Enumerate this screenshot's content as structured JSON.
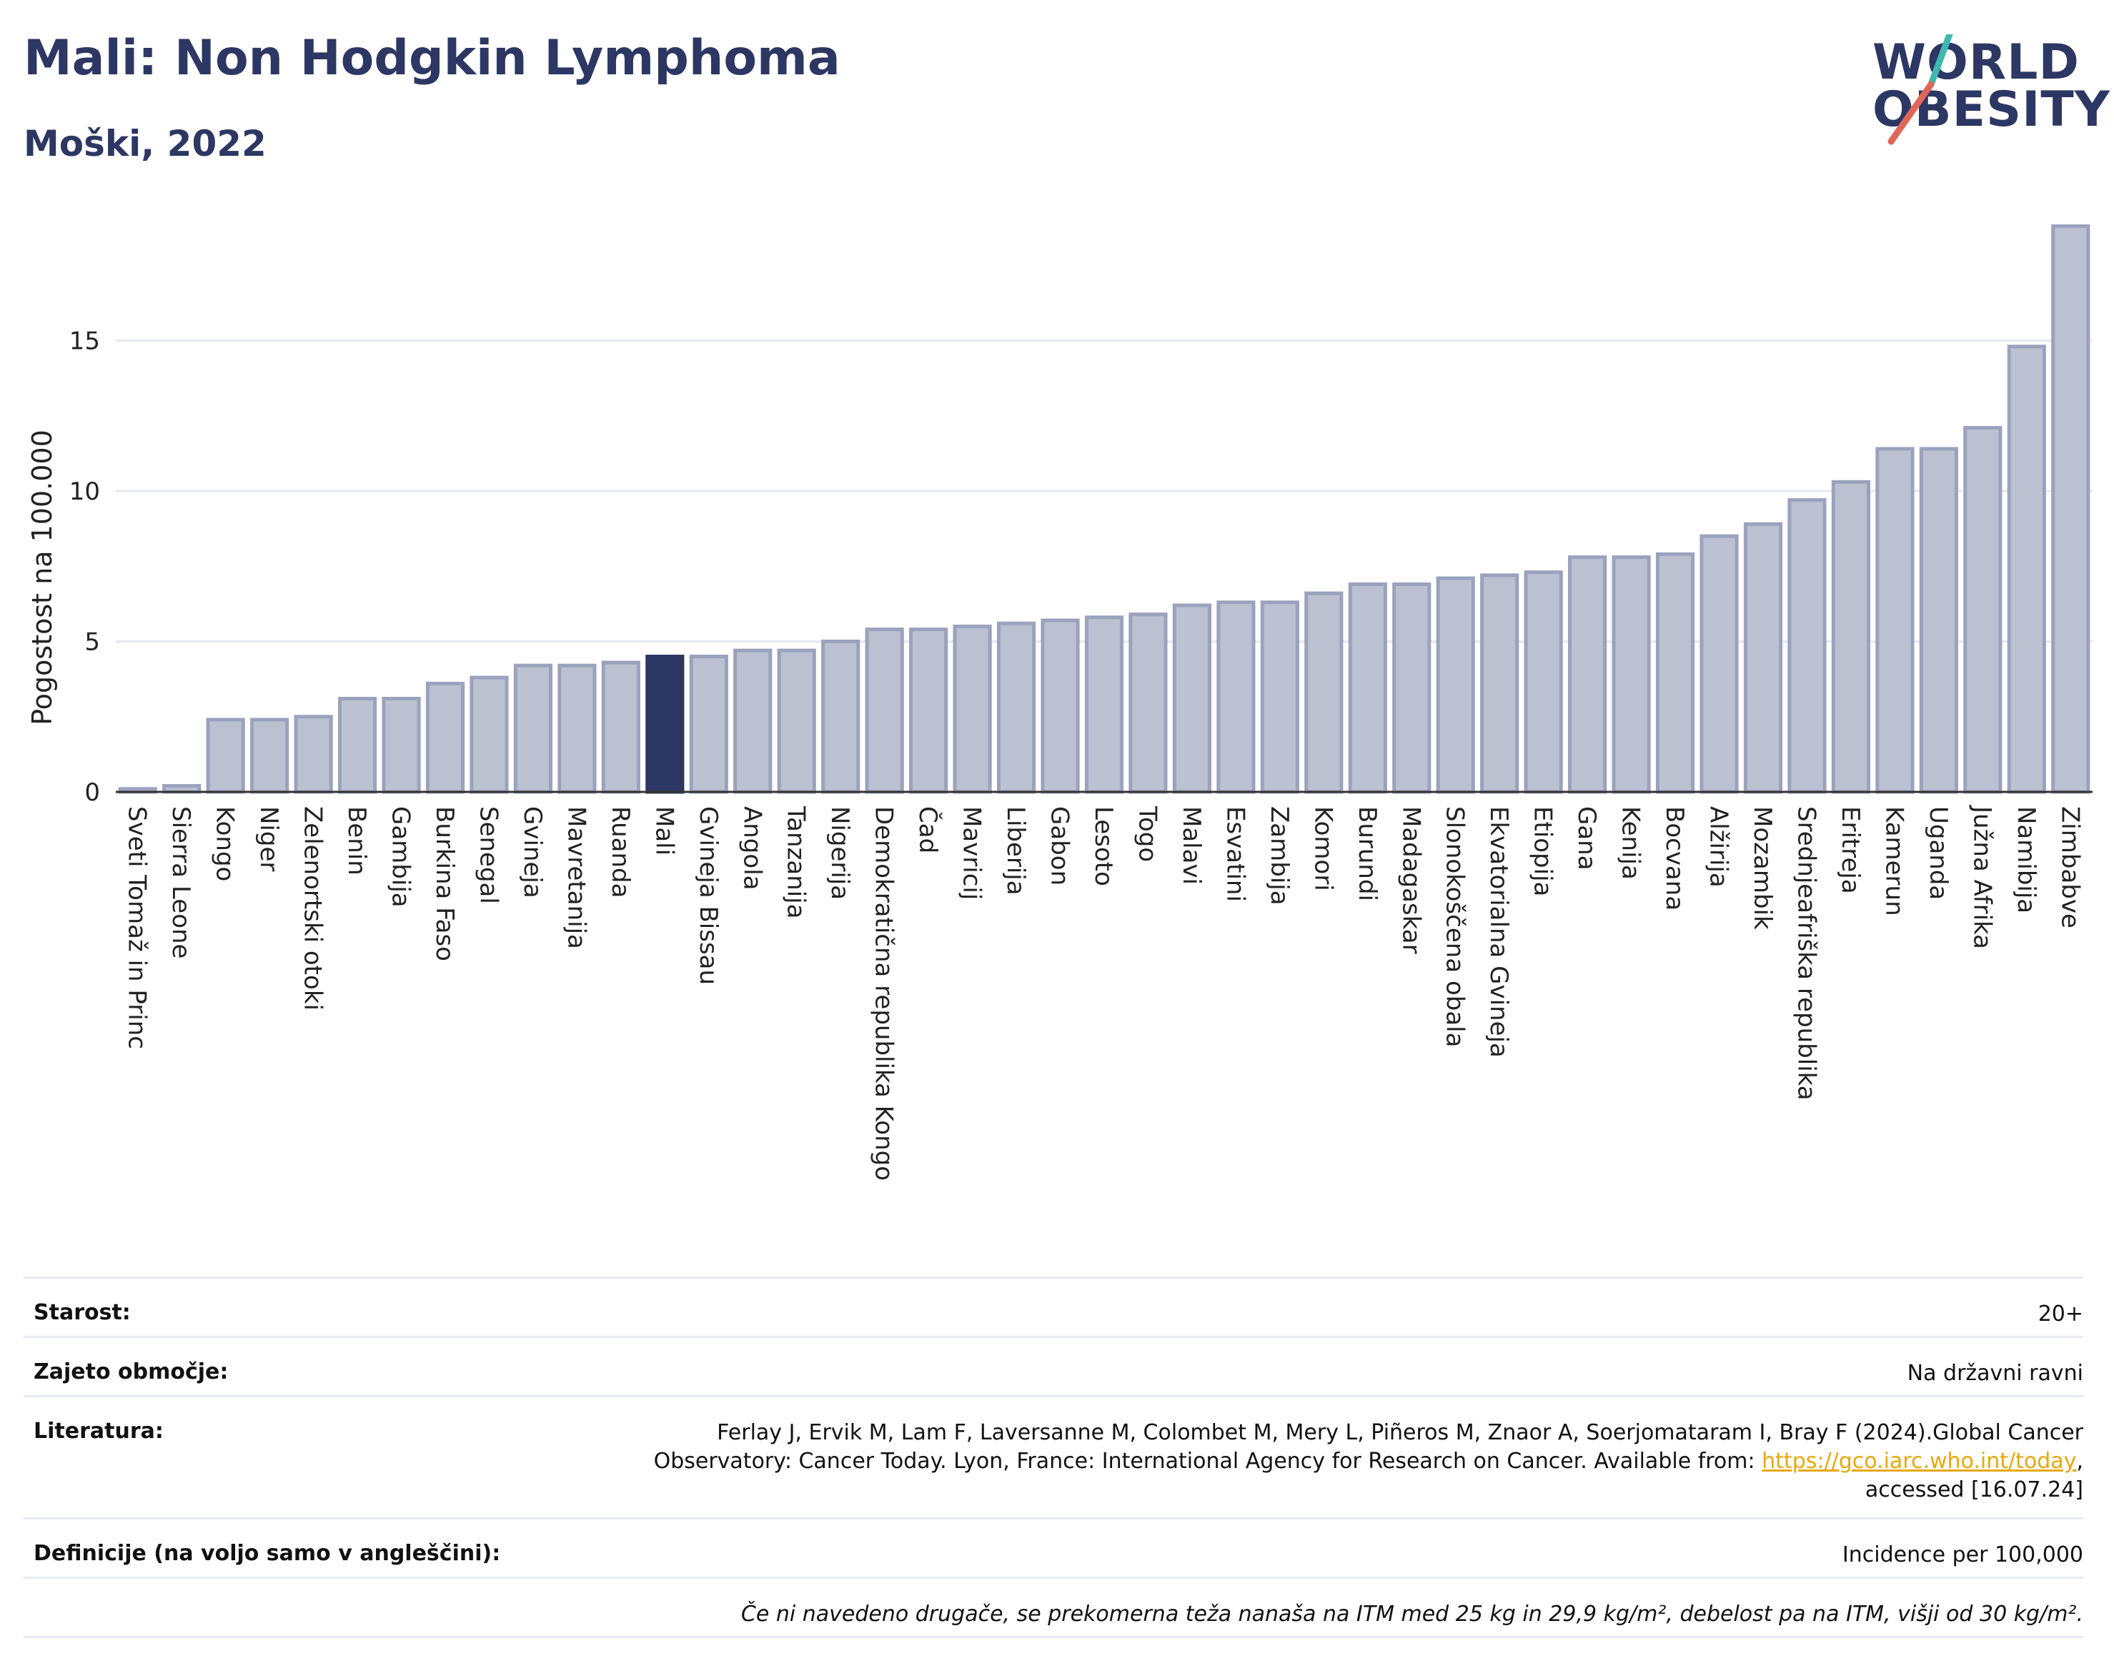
{
  "header": {
    "title": "Mali: Non Hodgkin Lymphoma",
    "subtitle": "Moški, 2022"
  },
  "logo": {
    "line1": "WORLD",
    "line2": "OBESITY"
  },
  "colors": {
    "bar": "#bcc1d1",
    "bar_stroke": "#9aa2bd",
    "highlight": "#2c3763",
    "brand": "#2c3763",
    "logo_slash_teal": "#3fb8b0",
    "logo_slash_red": "#e0665a"
  },
  "chart_data": {
    "type": "bar",
    "title": "Mali: Non Hodgkin Lymphoma",
    "subtitle": "Moški, 2022",
    "ylabel": "Pogostost na 100.000",
    "xlabel": "",
    "ylim": [
      0,
      19
    ],
    "yticks": [
      0,
      5,
      10,
      15
    ],
    "grid": true,
    "highlight": "Mali",
    "categories": [
      "Sveti Tomaž in Princ",
      "Sierra Leone",
      "Kongo",
      "Niger",
      "Zelenortski otoki",
      "Benin",
      "Gambija",
      "Burkina Faso",
      "Senegal",
      "Gvineja",
      "Mavretanija",
      "Ruanda",
      "Mali",
      "Gvineja Bissau",
      "Angola",
      "Tanzanija",
      "Nigerija",
      "Demokratična republika Kongo",
      "Čad",
      "Mavricij",
      "Liberija",
      "Gabon",
      "Lesoto",
      "Togo",
      "Malavi",
      "Esvatini",
      "Zambija",
      "Komori",
      "Burundi",
      "Madagaskar",
      "Slonokoščena obala",
      "Ekvatorialna Gvineja",
      "Etiopija",
      "Gana",
      "Kenija",
      "Bocvana",
      "Alžirija",
      "Mozambik",
      "Srednjeafriška republika",
      "Eritreja",
      "Kamerun",
      "Uganda",
      "Južna Afrika",
      "Namibija",
      "Zimbabve"
    ],
    "values": [
      0.1,
      0.2,
      2.4,
      2.4,
      2.5,
      3.1,
      3.1,
      3.6,
      3.8,
      4.2,
      4.2,
      4.3,
      4.5,
      4.5,
      4.7,
      4.7,
      5.0,
      5.4,
      5.4,
      5.5,
      5.6,
      5.7,
      5.8,
      5.9,
      6.2,
      6.3,
      6.3,
      6.6,
      6.9,
      6.9,
      7.1,
      7.2,
      7.3,
      7.8,
      7.8,
      7.9,
      8.5,
      8.9,
      9.7,
      10.3,
      11.4,
      11.4,
      12.1,
      14.8,
      18.8
    ]
  },
  "meta": {
    "age_label": "Starost:",
    "age_value": "20+",
    "area_label": "Zajeto območje:",
    "area_value": "Na državni ravni",
    "lit_label": "Literatura:",
    "lit_line1": "Ferlay J, Ervik M, Lam F, Laversanne M, Colombet M, Mery L, Piñeros M, Znaor A, Soerjomataram I, Bray F (2024).Global Cancer",
    "lit_line2_pre": "Observatory: Cancer Today. Lyon, France: International Agency for Research on Cancer. Available from: ",
    "lit_link": "https://gco.iarc.who.int/today",
    "lit_line2_post": ",",
    "lit_line3": "accessed [16.07.24]",
    "def_label": "Definicije (na voljo samo v angleščini):",
    "def_value": "Incidence per 100,000",
    "note": "Če ni navedeno drugače, se prekomerna teža nanaša na ITM med 25 kg in 29,9 kg/m², debelost pa na ITM, višji od 30 kg/m²."
  }
}
